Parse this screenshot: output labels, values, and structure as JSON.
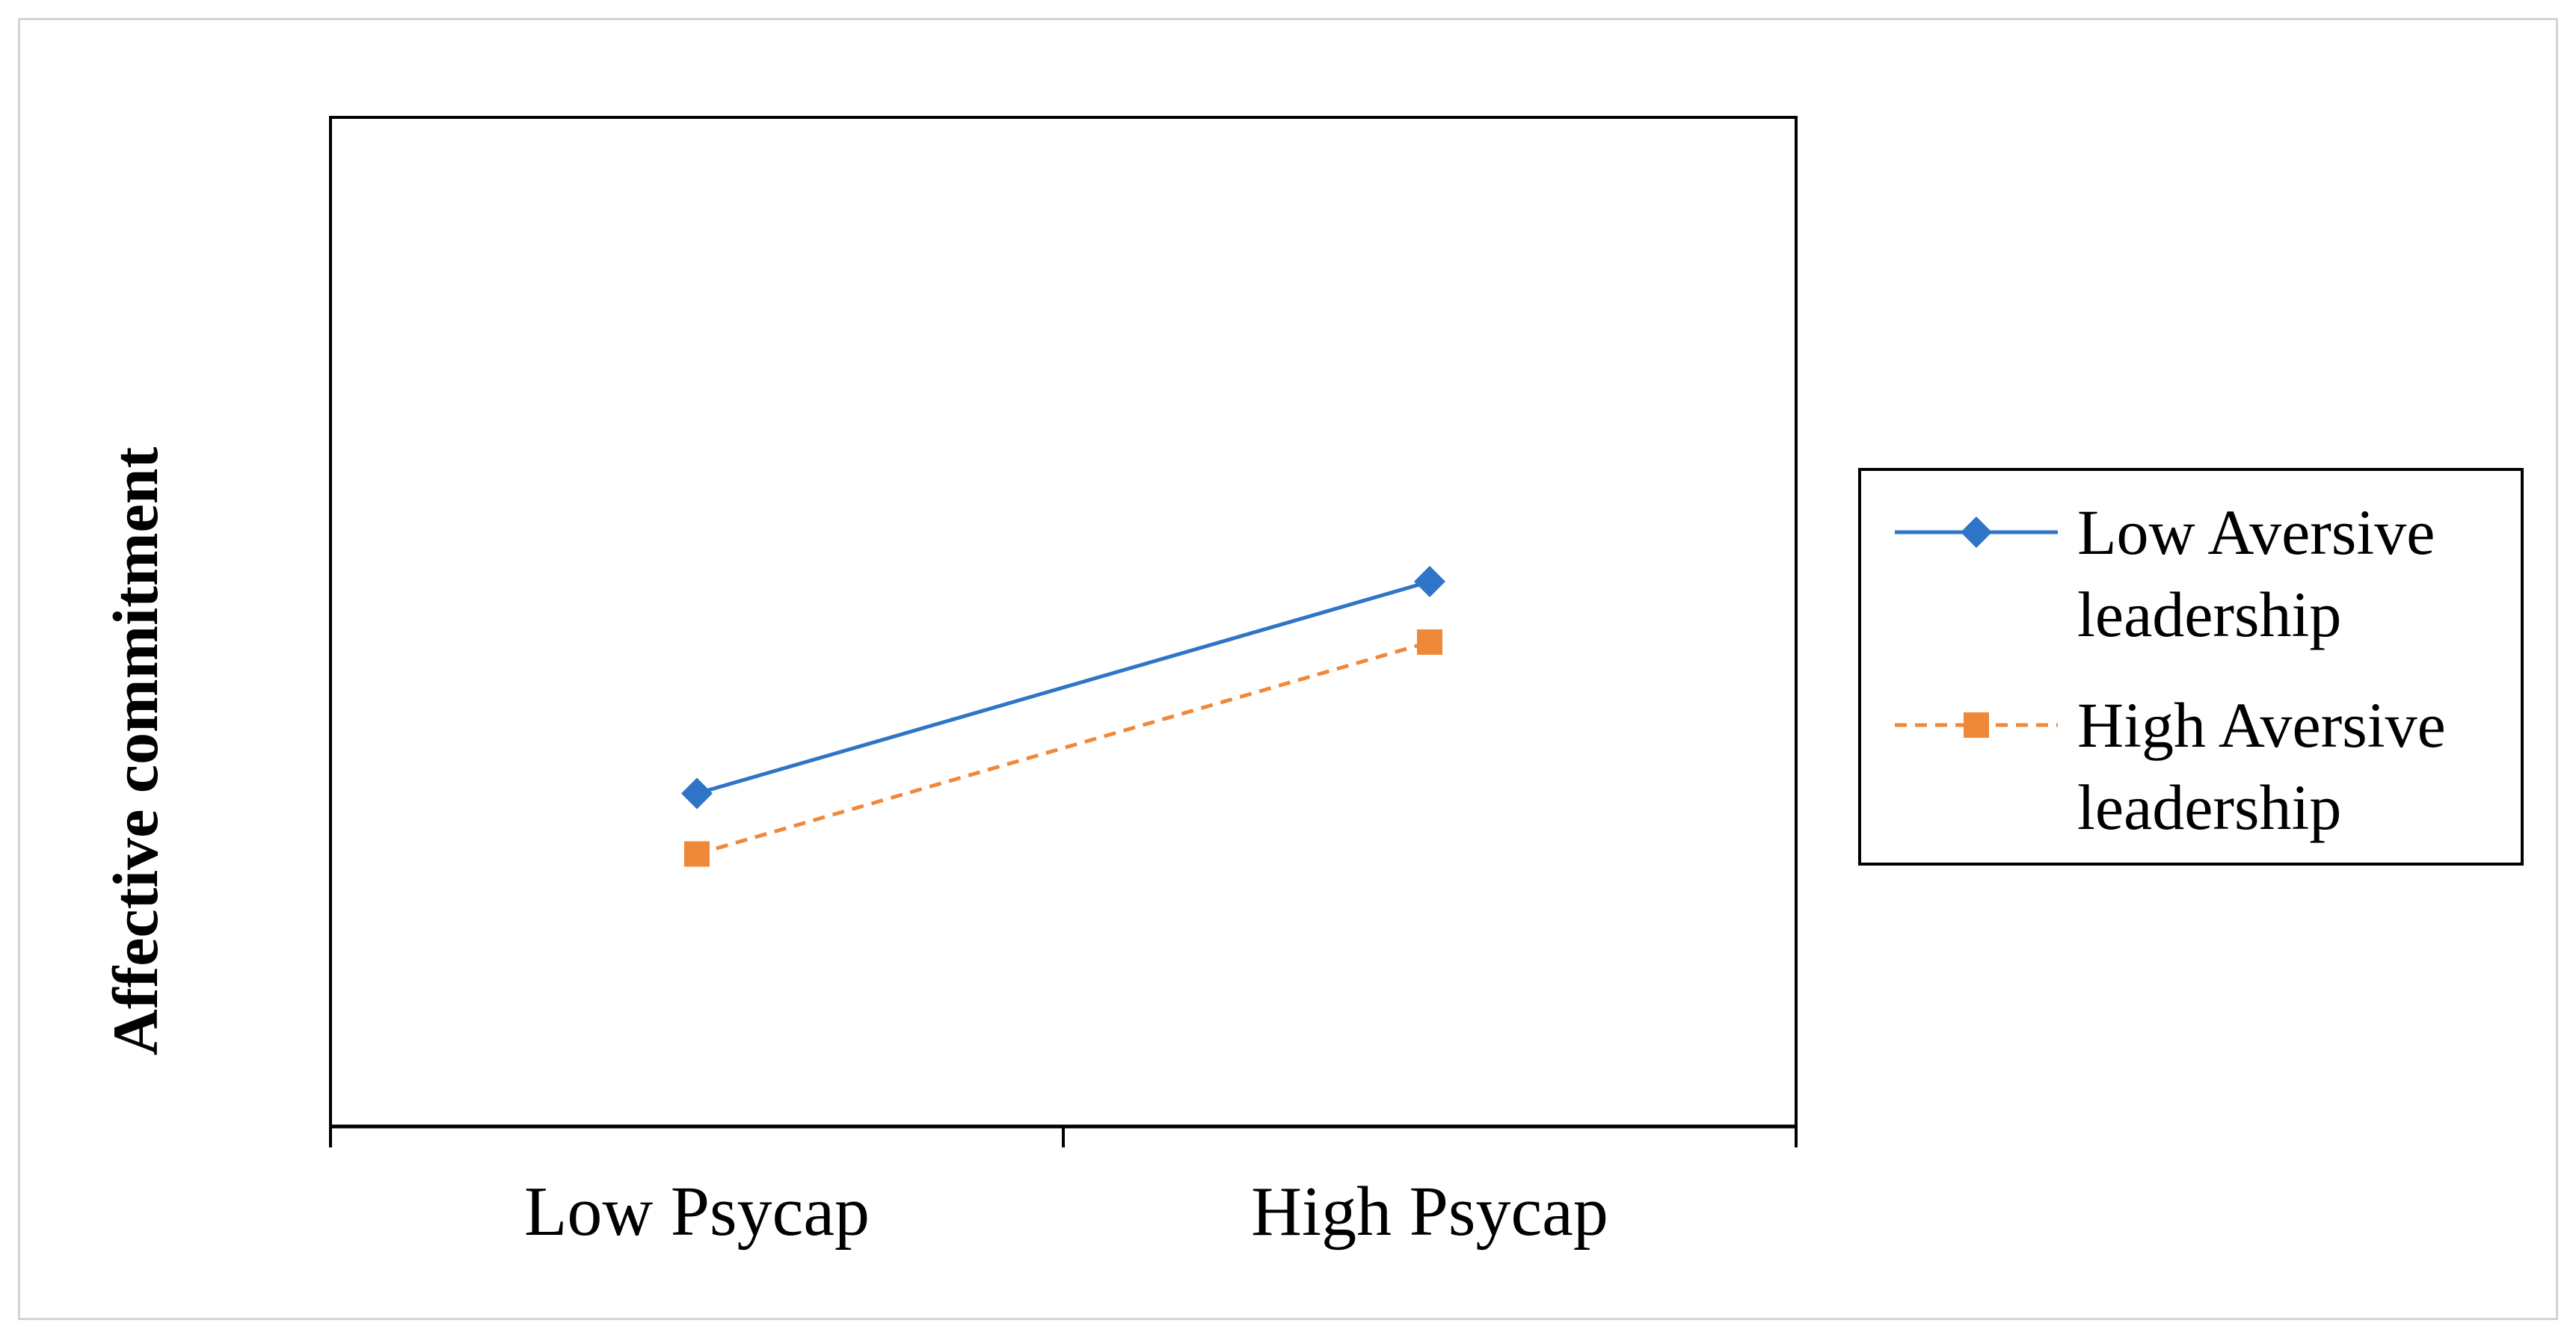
{
  "chart_data": {
    "type": "line",
    "title": "",
    "xlabel": "",
    "ylabel": "Affective commitment",
    "categories": [
      "Low Psycap",
      "High Psycap"
    ],
    "ylim": [
      0,
      10
    ],
    "grid": false,
    "legend_position": "right",
    "series": [
      {
        "name_lines": [
          "Low Aversive",
          "leadership"
        ],
        "values": [
          3.3,
          5.4
        ],
        "color": "#2e75c7",
        "line_style": "solid",
        "marker": "diamond"
      },
      {
        "name_lines": [
          "High Aversive",
          "leadership"
        ],
        "values": [
          2.7,
          4.8
        ],
        "color": "#f0883a",
        "line_style": "dashed",
        "marker": "square"
      }
    ]
  },
  "colors": {
    "axis": "#000000",
    "plot_border": "#000000",
    "frame_border": "#d4d4d4"
  }
}
